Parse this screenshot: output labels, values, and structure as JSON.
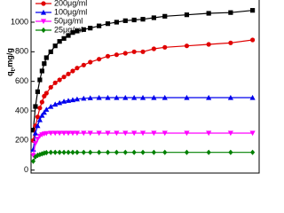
{
  "chart_data": {
    "type": "line",
    "y_label": "q",
    "y_label_sub": "t",
    "y_label_unit": ",mg/g",
    "x": [
      0,
      1,
      2,
      3,
      4,
      5,
      6,
      8,
      10,
      12,
      14,
      16,
      18,
      20,
      23,
      26,
      30,
      34,
      38,
      42,
      46,
      50,
      55,
      60,
      70,
      80,
      90,
      100
    ],
    "xlim": [
      -1,
      103
    ],
    "ylim": [
      -20,
      1150
    ],
    "yticks": [
      0,
      200,
      400,
      600,
      800,
      1000
    ],
    "legend": "upper left",
    "series": [
      {
        "color": "#000000",
        "marker": "square",
        "values": [
          270,
          430,
          530,
          610,
          670,
          720,
          760,
          800,
          840,
          870,
          890,
          910,
          930,
          940,
          950,
          960,
          975,
          990,
          1000,
          1010,
          1015,
          1020,
          1030,
          1040,
          1050,
          1060,
          1065,
          1080
        ]
      },
      {
        "name": "200μg/ml",
        "color": "#e00000",
        "marker": "circle",
        "values": [
          200,
          300,
          360,
          420,
          460,
          500,
          520,
          560,
          590,
          610,
          630,
          650,
          670,
          690,
          710,
          730,
          750,
          770,
          780,
          790,
          800,
          800,
          820,
          830,
          840,
          850,
          860,
          880
        ]
      },
      {
        "name": "100μg/ml",
        "color": "#0000ee",
        "marker": "triangle",
        "values": [
          140,
          250,
          300,
          340,
          370,
          390,
          410,
          430,
          445,
          455,
          465,
          470,
          475,
          480,
          485,
          488,
          490,
          490,
          490,
          490,
          490,
          490,
          490,
          490,
          490,
          490,
          490,
          490
        ]
      },
      {
        "name": "50μg/ml",
        "color": "#ff00ff",
        "marker": "triangle-down",
        "values": [
          100,
          180,
          210,
          230,
          240,
          245,
          248,
          250,
          250,
          250,
          250,
          250,
          250,
          250,
          250,
          250,
          250,
          250,
          250,
          250,
          250,
          250,
          250,
          250,
          250,
          250,
          250,
          250
        ]
      },
      {
        "name": "25μg/ml",
        "color": "#008000",
        "marker": "diamond",
        "values": [
          60,
          90,
          100,
          105,
          110,
          115,
          118,
          120,
          120,
          120,
          120,
          120,
          120,
          120,
          120,
          120,
          120,
          120,
          120,
          120,
          120,
          120,
          120,
          120,
          120,
          120,
          120,
          120
        ]
      }
    ]
  }
}
